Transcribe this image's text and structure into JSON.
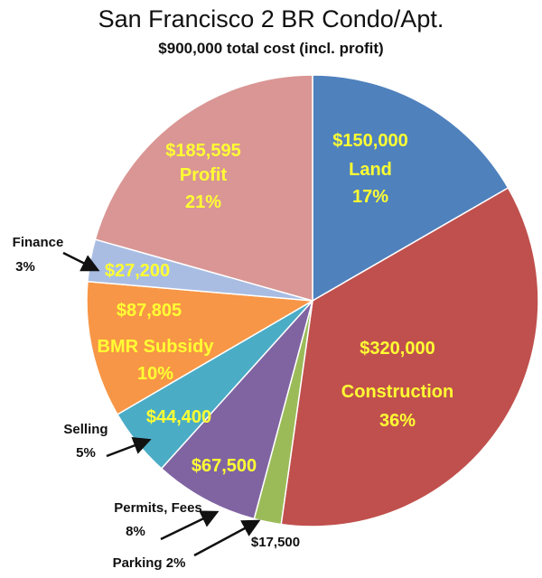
{
  "chart_data": {
    "type": "pie",
    "title": "San Francisco 2 BR Condo/Apt.",
    "subtitle": "$900,000 total cost (incl. profit)",
    "total": 900000,
    "slices": [
      {
        "name": "Land",
        "value": 150000,
        "value_label": "$150,000",
        "percent_label": "17%",
        "color": "#4f81bd"
      },
      {
        "name": "Construction",
        "value": 320000,
        "value_label": "$320,000",
        "percent_label": "36%",
        "color": "#c0504d"
      },
      {
        "name": "Parking",
        "value": 17500,
        "value_label": "$17,500",
        "percent_label": "Parking 2%",
        "color": "#9bbb59"
      },
      {
        "name": "Permits, Fees",
        "value": 67500,
        "value_label": "$67,500",
        "percent_label": "8%",
        "color": "#8064a2"
      },
      {
        "name": "Selling",
        "value": 44400,
        "value_label": "$44,400",
        "percent_label": "5%",
        "color": "#4bacc6"
      },
      {
        "name": "BMR Subsidy",
        "value": 87805,
        "value_label": "$87,805",
        "percent_label": "10%",
        "color": "#f79646"
      },
      {
        "name": "Finance",
        "value": 27200,
        "value_label": "$27,200",
        "percent_label": "3%",
        "color": "#a9bde3"
      },
      {
        "name": "Profit",
        "value": 185595,
        "value_label": "$185,595",
        "percent_label": "21%",
        "color": "#d99694"
      }
    ]
  }
}
